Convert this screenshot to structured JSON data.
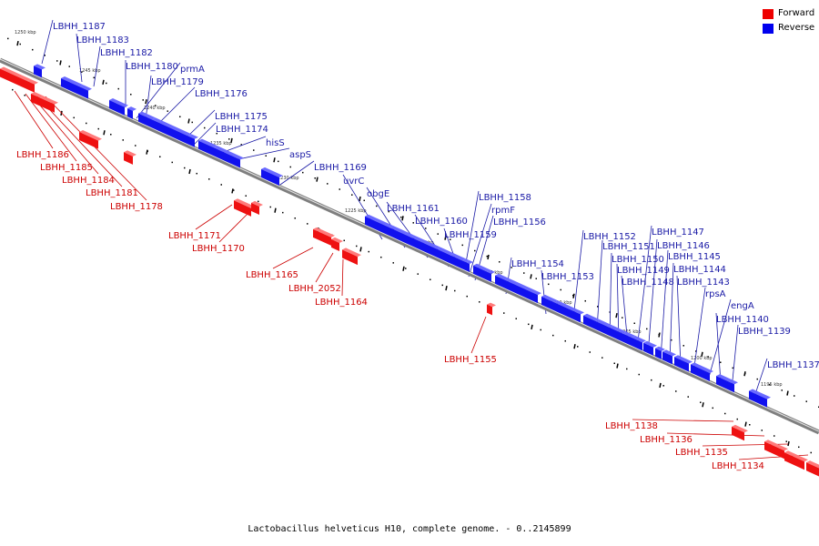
{
  "legend": {
    "forward_label": "Forward",
    "reverse_label": "Reverse",
    "forward_color": "#ee0000",
    "reverse_color": "#0000ee"
  },
  "caption": "Lactobacillus helveticus H10, complete genome. - 0..2145899",
  "scale_labels": [
    "1250 kbp",
    "1245 kbp",
    "1240 kbp",
    "1235 kbp",
    "1230 kbp",
    "1225 kbp",
    "1220 kbp",
    "1215 kbp",
    "1210 kbp",
    "1205 kbp",
    "1200 kbp",
    "1195 kbp"
  ],
  "genes_reverse": [
    "LBHH_1187",
    "LBHH_1183",
    "LBHH_1182",
    "LBHH_1180",
    "prmA",
    "LBHH_1179",
    "LBHH_1176",
    "LBHH_1175",
    "LBHH_1174",
    "hisS",
    "aspS",
    "LBHH_1169",
    "uvrC",
    "obgE",
    "LBHH_1161",
    "LBHH_1160",
    "LBHH_1159",
    "LBHH_1158",
    "rpmF",
    "LBHH_1156",
    "LBHH_1154",
    "LBHH_1153",
    "LBHH_1152",
    "LBHH_1151",
    "LBHH_1150",
    "LBHH_1149",
    "LBHH_1148",
    "LBHH_1147",
    "LBHH_1146",
    "LBHH_1145",
    "LBHH_1144",
    "LBHH_1143",
    "rpsA",
    "engA",
    "LBHH_1140",
    "LBHH_1139",
    "LBHH_1137"
  ],
  "genes_forward": [
    "LBHH_1186",
    "LBHH_1185",
    "LBHH_1184",
    "LBHH_1181",
    "LBHH_1178",
    "LBHH_1171",
    "LBHH_1170",
    "LBHH_1165",
    "LBHH_2052",
    "LBHH_1164",
    "LBHH_1155",
    "LBHH_1138",
    "LBHH_1136",
    "LBHH_1135",
    "LBHH_1134"
  ]
}
